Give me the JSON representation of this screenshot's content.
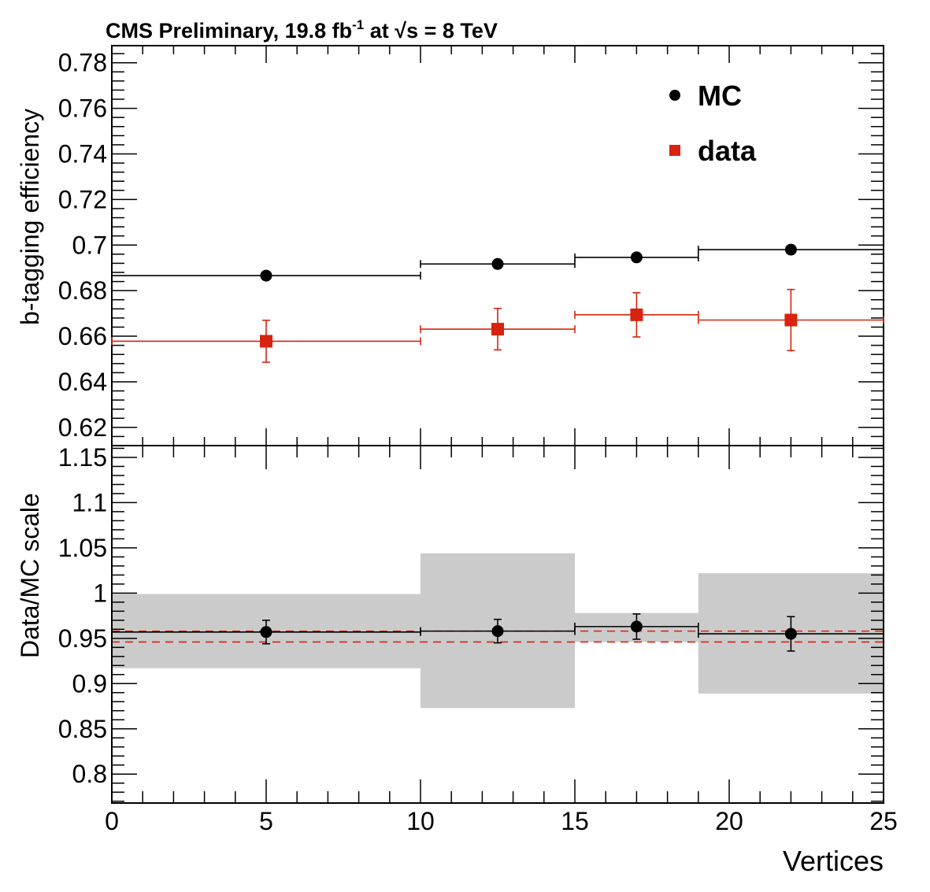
{
  "chart_data": [
    {
      "type": "scatter",
      "panel": "upper",
      "title": "CMS Preliminary, 19.8 fb",
      "title_sup": "-1",
      "title_rest": " at ",
      "title_energy": "s = 8 TeV",
      "ylabel": "b-tagging efficiency",
      "xlabel": "",
      "ylim": [
        0.612,
        0.7875
      ],
      "xlim": [
        0,
        25
      ],
      "yticks": [
        0.62,
        0.64,
        0.66,
        0.68,
        0.7,
        0.72,
        0.74,
        0.76,
        0.78
      ],
      "ytick_labels": [
        "0.62",
        "0.64",
        "0.66",
        "0.68",
        "0.7",
        "0.72",
        "0.74",
        "0.76",
        "0.78"
      ],
      "legend_placement": "top-right",
      "series": [
        {
          "name": "MC",
          "color": "#000000",
          "marker": "circle",
          "points": [
            {
              "x": 5,
              "y": 0.6866,
              "xlo": 0,
              "xhi": 10,
              "yerr": 0.0
            },
            {
              "x": 12.5,
              "y": 0.6917,
              "xlo": 10,
              "xhi": 15,
              "yerr": 0.0
            },
            {
              "x": 17,
              "y": 0.6946,
              "xlo": 15,
              "xhi": 19,
              "yerr": 0.0
            },
            {
              "x": 22,
              "y": 0.698,
              "xlo": 19,
              "xhi": 25,
              "yerr": 0.0
            }
          ]
        },
        {
          "name": "data",
          "color": "#d7230f",
          "marker": "square",
          "points": [
            {
              "x": 5,
              "y": 0.6578,
              "xlo": 0,
              "xhi": 10,
              "yerr": 0.0092
            },
            {
              "x": 12.5,
              "y": 0.6631,
              "xlo": 10,
              "xhi": 15,
              "yerr": 0.0091
            },
            {
              "x": 17,
              "y": 0.6694,
              "xlo": 15,
              "xhi": 19,
              "yerr": 0.0097
            },
            {
              "x": 22,
              "y": 0.6671,
              "xlo": 19,
              "xhi": 25,
              "yerr": 0.0134
            }
          ]
        }
      ]
    },
    {
      "type": "scatter",
      "panel": "lower",
      "ylabel": "Data/MC scale",
      "xlabel": "Vertices",
      "ylim": [
        0.768,
        1.163
      ],
      "xlim": [
        0,
        25
      ],
      "yticks": [
        0.8,
        0.85,
        0.9,
        0.95,
        1,
        1.05,
        1.1,
        1.15
      ],
      "ytick_labels": [
        "0.8",
        "0.85",
        "0.9",
        "0.95",
        "1",
        "1.05",
        "1.1",
        "1.15"
      ],
      "xticks": [
        0,
        5,
        10,
        15,
        20,
        25
      ],
      "xtick_labels": [
        "0",
        "5",
        "10",
        "15",
        "20",
        "25"
      ],
      "bands": [
        {
          "xlo": 0,
          "xhi": 10,
          "ylo": 0.917,
          "yhi": 0.999
        },
        {
          "xlo": 10,
          "xhi": 15,
          "ylo": 0.873,
          "yhi": 1.044
        },
        {
          "xlo": 15,
          "xhi": 19,
          "ylo": 0.946,
          "yhi": 0.978
        },
        {
          "xlo": 19,
          "xhi": 25,
          "ylo": 0.889,
          "yhi": 1.022
        }
      ],
      "dashed_lines": [
        0.958,
        0.946
      ],
      "points": [
        {
          "x": 5,
          "y": 0.957,
          "xlo": 0,
          "xhi": 10,
          "yerr": 0.013
        },
        {
          "x": 12.5,
          "y": 0.958,
          "xlo": 10,
          "xhi": 15,
          "yerr": 0.013
        },
        {
          "x": 17,
          "y": 0.963,
          "xlo": 15,
          "xhi": 19,
          "yerr": 0.014
        },
        {
          "x": 22,
          "y": 0.955,
          "xlo": 19,
          "xhi": 25,
          "yerr": 0.019
        }
      ]
    }
  ],
  "colors": {
    "mc": "#000000",
    "data": "#d7230f",
    "band": "#cbcbcb",
    "frame": "#000000"
  }
}
